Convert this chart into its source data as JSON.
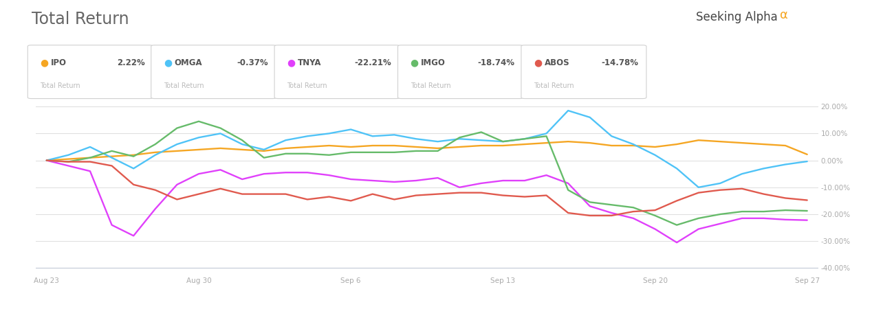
{
  "title": "Total Return",
  "background_color": "#ffffff",
  "plot_bg_color": "#ffffff",
  "grid_color": "#e0e0e0",
  "x_labels": [
    "Aug 23",
    "Aug 30",
    "Sep 6",
    "Sep 13",
    "Sep 20",
    "Sep 27"
  ],
  "x_positions": [
    0,
    7,
    14,
    21,
    28,
    35
  ],
  "ylim": [
    -42,
    24
  ],
  "yticks": [
    -40,
    -30,
    -20,
    -10,
    0,
    10,
    20
  ],
  "series": {
    "IPO": {
      "color": "#f5a623",
      "x": [
        0,
        1,
        2,
        3,
        4,
        5,
        6,
        7,
        8,
        9,
        10,
        11,
        12,
        13,
        14,
        15,
        16,
        17,
        18,
        19,
        20,
        21,
        22,
        23,
        24,
        25,
        26,
        27,
        28,
        29,
        30,
        31,
        32,
        33,
        34,
        35
      ],
      "y": [
        0,
        0.5,
        1.0,
        1.5,
        2.0,
        3.0,
        3.5,
        4.0,
        4.5,
        4.0,
        3.5,
        4.5,
        5.0,
        5.5,
        5.0,
        5.5,
        5.5,
        5.0,
        4.5,
        5.0,
        5.5,
        5.5,
        6.0,
        6.5,
        7.0,
        6.5,
        5.5,
        5.5,
        5.0,
        6.0,
        7.5,
        7.0,
        6.5,
        6.0,
        5.5,
        2.22
      ]
    },
    "OMGA": {
      "color": "#4fc3f7",
      "x": [
        0,
        1,
        2,
        3,
        4,
        5,
        6,
        7,
        8,
        9,
        10,
        11,
        12,
        13,
        14,
        15,
        16,
        17,
        18,
        19,
        20,
        21,
        22,
        23,
        24,
        25,
        26,
        27,
        28,
        29,
        30,
        31,
        32,
        33,
        34,
        35
      ],
      "y": [
        0,
        2.0,
        5.0,
        1.0,
        -3.0,
        2.0,
        6.0,
        8.5,
        10.0,
        6.0,
        4.0,
        7.5,
        9.0,
        10.0,
        11.5,
        9.0,
        9.5,
        8.0,
        7.0,
        8.0,
        7.5,
        7.0,
        8.0,
        10.0,
        18.5,
        16.0,
        9.0,
        6.0,
        2.0,
        -3.0,
        -10.0,
        -8.5,
        -5.0,
        -3.0,
        -1.5,
        -0.37
      ]
    },
    "TNYA": {
      "color": "#e040fb",
      "x": [
        0,
        1,
        2,
        3,
        4,
        5,
        6,
        7,
        8,
        9,
        10,
        11,
        12,
        13,
        14,
        15,
        16,
        17,
        18,
        19,
        20,
        21,
        22,
        23,
        24,
        25,
        26,
        27,
        28,
        29,
        30,
        31,
        32,
        33,
        34,
        35
      ],
      "y": [
        0,
        -2.0,
        -4.0,
        -24.0,
        -28.0,
        -18.0,
        -9.0,
        -5.0,
        -3.5,
        -7.0,
        -5.0,
        -4.5,
        -4.5,
        -5.5,
        -7.0,
        -7.5,
        -8.0,
        -7.5,
        -6.5,
        -10.0,
        -8.5,
        -7.5,
        -7.5,
        -5.5,
        -8.5,
        -17.0,
        -19.5,
        -21.5,
        -25.5,
        -30.5,
        -25.5,
        -23.5,
        -21.5,
        -21.5,
        -22.0,
        -22.21
      ]
    },
    "IMGO": {
      "color": "#66bb6a",
      "x": [
        0,
        1,
        2,
        3,
        4,
        5,
        6,
        7,
        8,
        9,
        10,
        11,
        12,
        13,
        14,
        15,
        16,
        17,
        18,
        19,
        20,
        21,
        22,
        23,
        24,
        25,
        26,
        27,
        28,
        29,
        30,
        31,
        32,
        33,
        34,
        35
      ],
      "y": [
        0,
        -0.5,
        1.0,
        3.5,
        1.5,
        6.0,
        12.0,
        14.5,
        12.0,
        7.5,
        1.0,
        2.5,
        2.5,
        2.0,
        3.0,
        3.0,
        3.0,
        3.5,
        3.5,
        8.5,
        10.5,
        7.0,
        8.0,
        9.0,
        -11.0,
        -15.5,
        -16.5,
        -17.5,
        -20.5,
        -24.0,
        -21.5,
        -20.0,
        -19.0,
        -19.0,
        -18.5,
        -18.74
      ]
    },
    "ABOS": {
      "color": "#e05a4e",
      "x": [
        0,
        1,
        2,
        3,
        4,
        5,
        6,
        7,
        8,
        9,
        10,
        11,
        12,
        13,
        14,
        15,
        16,
        17,
        18,
        19,
        20,
        21,
        22,
        23,
        24,
        25,
        26,
        27,
        28,
        29,
        30,
        31,
        32,
        33,
        34,
        35
      ],
      "y": [
        0,
        -0.5,
        -0.5,
        -2.0,
        -9.0,
        -11.0,
        -14.5,
        -12.5,
        -10.5,
        -12.5,
        -12.5,
        -12.5,
        -14.5,
        -13.5,
        -15.0,
        -12.5,
        -14.5,
        -13.0,
        -12.5,
        -12.0,
        -12.0,
        -13.0,
        -13.5,
        -13.0,
        -19.5,
        -20.5,
        -20.5,
        -19.0,
        -18.5,
        -15.0,
        -12.0,
        -11.0,
        -10.5,
        -12.5,
        -14.0,
        -14.78
      ]
    }
  },
  "legend_items": [
    {
      "name": "IPO",
      "color": "#f5a623",
      "value": "2.22%",
      "sub": "Total Return"
    },
    {
      "name": "OMGA",
      "color": "#4fc3f7",
      "value": "-0.37%",
      "sub": "Total Return"
    },
    {
      "name": "TNYA",
      "color": "#e040fb",
      "value": "-22.21%",
      "sub": "Total Return"
    },
    {
      "name": "IMGO",
      "color": "#66bb6a",
      "value": "-18.74%",
      "sub": "Total Return"
    },
    {
      "name": "ABOS",
      "color": "#e05a4e",
      "value": "-14.78%",
      "sub": "Total Return"
    }
  ]
}
